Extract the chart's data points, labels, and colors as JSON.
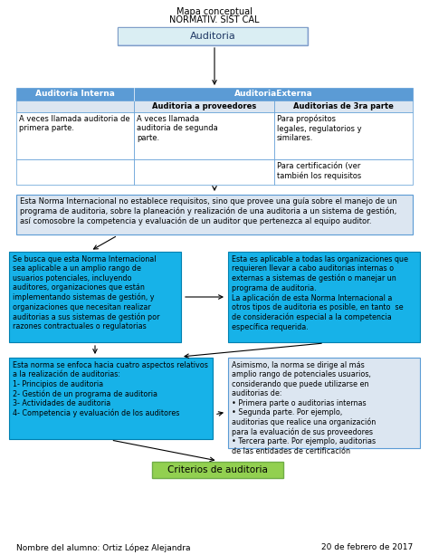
{
  "title_line1": "Mapa conceptual",
  "title_line2": "NORMATIV. SIST CAL",
  "box_auditoria": "Auditoria",
  "table_header_left": "Auditoria Interna",
  "table_header_right": "AuditoriaExterna",
  "table_sub1": "Auditoria a proveedores",
  "table_sub2": "Auditorias de 3ra parte",
  "table_cell1": "A veces llamada auditoria de\nprimera parte.",
  "table_cell2": "A veces llamada\nauditoria de segunda\nparte.",
  "table_cell3": "Para propósitos\nlegales, regulatorios y\nsimilares.",
  "table_cell4": "Para certificación (ver\ntambién los requisitos",
  "box1_text": "Esta Norma Internacional no establece requisitos, sino que provee una guía sobre el manejo de un\nprograma de auditoria, sobre la planeación y realización de una auditoria a un sistema de gestión,\nasí comosobre la competencia y evaluación de un auditor que pertenezca al equipo auditor.",
  "box2_text": "Se busca que esta Norma Internacional\nsea aplicable a un amplio rango de\nusuarios potenciales, incluyendo\nauditores, organizaciones que están\nimplementando sistemas de gestión, y\norganizaciones que necesitan realizar\nauditorias a sus sistemas de gestión por\nrazones contractuales o regulatorias",
  "box3_text": "Esta es aplicable a todas las organizaciones que\nrequieren llevar a cabo auditorias internas o\nexternas a sistemas de gestión o manejar un\nprograma de auditoria.\nLa aplicación de esta Norma Internacional a\notros tipos de auditoria es posible, en tanto  se\nde consideración especial a la competencia\nespecífica requerida.",
  "box4_text": "Esta norma se enfoca hacia cuatro aspectos relativos\na la realización de auditorias:\n1- Principios de auditoria\n2- Gestión de un programa de auditoria\n3- Actividades de auditoria\n4- Competencia y evaluación de los auditores",
  "box5_text": "Asimismo, la norma se dirige al más\namplio rango de potenciales usuarios,\nconsiderando que puede utilizarse en\nauditorias de:\n• Primera parte o auditorias internas\n• Segunda parte. Por ejemplo,\nauditorias que realice una organización\npara la evaluación de sus proveedores\n• Tercera parte. Por ejemplo, auditorias\nde las entidades de certificación",
  "box_criterios": "Criterios de auditoria",
  "footer_left": "Nombre del alumno: Ortiz López Alejandra",
  "footer_right": "20 de febrero de 2017",
  "color_blue_header": "#5b9bd5",
  "color_blue_light": "#dce6f1",
  "color_cyan": "#17b2e8",
  "color_white": "#ffffff",
  "color_green_fill": "#92d050",
  "color_green_edge": "#70ad47",
  "bg_color": "#ffffff"
}
